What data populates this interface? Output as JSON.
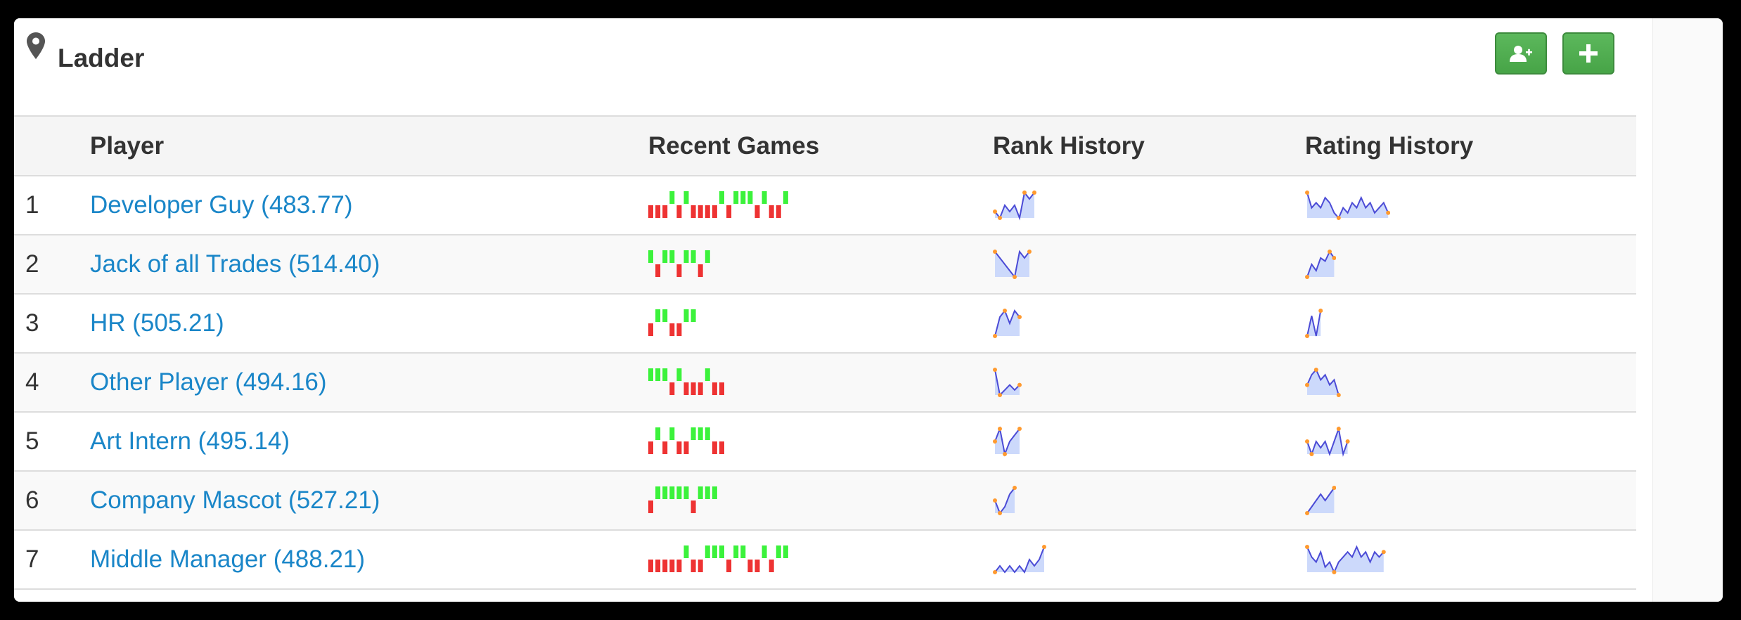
{
  "panel": {
    "title": "Ladder",
    "icons": {
      "title": "map-marker-icon",
      "add_user": "add-user-icon",
      "add": "plus-icon"
    }
  },
  "table": {
    "headers": {
      "rank": "",
      "player": "Player",
      "recent_games": "Recent Games",
      "rank_history": "Rank History",
      "rating_history": "Rating History"
    },
    "rows": [
      {
        "rank": "1",
        "player": "Developer Guy (483.77)",
        "recent_games": [
          0,
          0,
          0,
          1,
          0,
          1,
          0,
          0,
          0,
          0,
          1,
          0,
          1,
          1,
          1,
          0,
          1,
          0,
          0,
          1
        ],
        "rank_history": [
          2,
          1,
          3,
          2,
          3,
          1,
          5,
          4,
          5
        ],
        "rating_history": [
          6,
          3,
          4,
          3,
          5,
          4,
          2,
          1,
          3,
          2,
          4,
          3,
          5,
          3,
          4,
          2,
          3,
          4,
          2
        ]
      },
      {
        "rank": "2",
        "player": "Jack of all Trades (514.40)",
        "recent_games": [
          1,
          0,
          1,
          1,
          0,
          1,
          1,
          0,
          1
        ],
        "rank_history": [
          5,
          4,
          3,
          2,
          1,
          5,
          4,
          5
        ],
        "rating_history": [
          1,
          5,
          3,
          7,
          6,
          9,
          7
        ]
      },
      {
        "rank": "3",
        "player": "HR (505.21)",
        "recent_games": [
          0,
          1,
          1,
          0,
          0,
          1,
          1
        ],
        "rank_history": [
          1,
          4,
          5,
          3,
          5,
          4
        ],
        "rating_history": [
          1,
          5,
          1,
          6
        ]
      },
      {
        "rank": "4",
        "player": "Other Player (494.16)",
        "recent_games": [
          1,
          1,
          1,
          0,
          1,
          0,
          0,
          0,
          1,
          0,
          0
        ],
        "rank_history": [
          6,
          1,
          2,
          3,
          2,
          3
        ],
        "rating_history": [
          3,
          5,
          6,
          4,
          5,
          3,
          4,
          1
        ]
      },
      {
        "rank": "5",
        "player": "Art Intern (495.14)",
        "recent_games": [
          0,
          1,
          0,
          1,
          0,
          0,
          1,
          1,
          1,
          0,
          0
        ],
        "rank_history": [
          3,
          5,
          1,
          3,
          4,
          5
        ],
        "rating_history": [
          3,
          1,
          3,
          2,
          3,
          1,
          3,
          5,
          1,
          3
        ]
      },
      {
        "rank": "6",
        "player": "Company Mascot (527.21)",
        "recent_games": [
          0,
          1,
          1,
          1,
          1,
          1,
          0,
          1,
          1,
          1
        ],
        "rank_history": [
          3,
          1,
          2,
          4,
          5
        ],
        "rating_history": [
          1,
          2,
          3,
          4,
          3,
          4,
          5
        ]
      },
      {
        "rank": "7",
        "player": "Middle Manager (488.21)",
        "recent_games": [
          0,
          0,
          0,
          0,
          0,
          1,
          0,
          0,
          1,
          1,
          1,
          0,
          1,
          1,
          0,
          0,
          1,
          0,
          1,
          1
        ],
        "rank_history": [
          1,
          2,
          1,
          2,
          1,
          2,
          1,
          3,
          2,
          3,
          5
        ],
        "rating_history": [
          6,
          4,
          3,
          5,
          2,
          3,
          1,
          3,
          4,
          5,
          4,
          6,
          4,
          5,
          3,
          5,
          4,
          5
        ]
      }
    ]
  },
  "colors": {
    "win": "#3cf23c",
    "loss": "#ee3333",
    "line": "#4b4bd6",
    "fill": "#ccd9fb",
    "marker": "#ff9a2f",
    "link": "#1a86c8",
    "button": "#5cb85c"
  }
}
